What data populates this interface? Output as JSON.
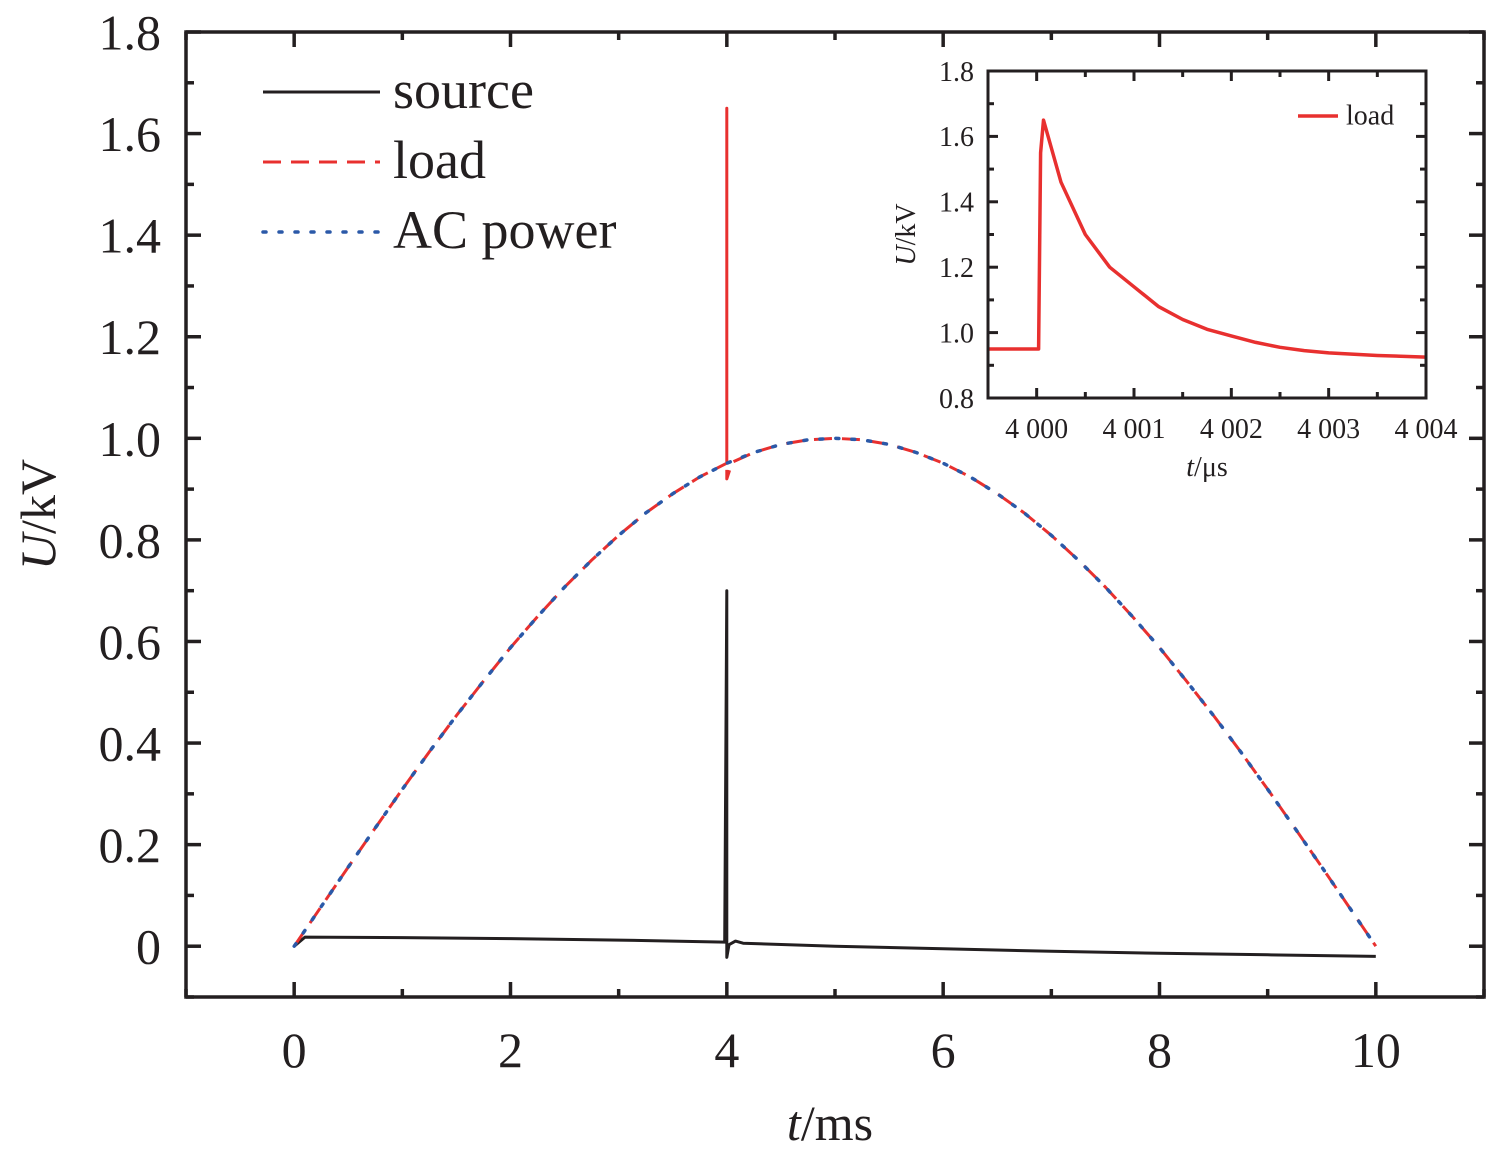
{
  "chart_data": [
    {
      "id": "main",
      "type": "line",
      "xlabel": {
        "var": "t",
        "unit": "/ms"
      },
      "ylabel": {
        "var": "U",
        "unit": "/kV"
      },
      "xlim": [
        -1,
        11
      ],
      "ylim": [
        -0.1,
        1.8
      ],
      "xticks": [
        0,
        2,
        4,
        6,
        8,
        10
      ],
      "xtick_labels": [
        "0",
        "2",
        "4",
        "6",
        "8",
        "10"
      ],
      "yticks": [
        0,
        0.2,
        0.4,
        0.6,
        0.8,
        1.0,
        1.2,
        1.4,
        1.6,
        1.8
      ],
      "ytick_labels": [
        "0",
        "0.2",
        "0.4",
        "0.6",
        "0.8",
        "1.0",
        "1.2",
        "1.4",
        "1.6",
        "1.8"
      ],
      "grid": false,
      "legend": "top-left",
      "series": [
        {
          "name": "source",
          "color": "#231f20",
          "style": "solid",
          "x": [
            0,
            0.1,
            1,
            2,
            3,
            3.98,
            4,
            4,
            4.02,
            4.08,
            4.15,
            5,
            6,
            7,
            8,
            9,
            10
          ],
          "y": [
            0,
            0.018,
            0.017,
            0.015,
            0.012,
            0.008,
            0.7,
            -0.022,
            0.003,
            0.01,
            0.006,
            0.0,
            -0.005,
            -0.01,
            -0.014,
            -0.017,
            -0.02
          ]
        },
        {
          "name": "load",
          "color": "#e8302f",
          "style": "dashed",
          "x": [
            0,
            0.25,
            0.5,
            0.75,
            1,
            1.25,
            1.5,
            1.75,
            2,
            2.25,
            2.5,
            2.75,
            3,
            3.25,
            3.5,
            3.75,
            4,
            4,
            4,
            4.05,
            4.25,
            4.5,
            4.75,
            5,
            5.25,
            5.5,
            5.75,
            6,
            6.25,
            6.5,
            6.75,
            7,
            7.25,
            7.5,
            7.75,
            8,
            8.25,
            8.5,
            8.75,
            9,
            9.25,
            9.5,
            9.75,
            10
          ],
          "y": [
            0,
            0.078,
            0.156,
            0.233,
            0.309,
            0.383,
            0.454,
            0.522,
            0.588,
            0.649,
            0.707,
            0.76,
            0.809,
            0.853,
            0.891,
            0.924,
            0.951,
            1.65,
            0.92,
            0.953,
            0.972,
            0.988,
            0.997,
            1.0,
            0.997,
            0.988,
            0.972,
            0.951,
            0.924,
            0.891,
            0.853,
            0.809,
            0.76,
            0.707,
            0.649,
            0.588,
            0.522,
            0.454,
            0.383,
            0.309,
            0.233,
            0.156,
            0.078,
            0.0
          ]
        },
        {
          "name": "AC power",
          "color": "#2b59a8",
          "style": "dotted",
          "x": [
            0,
            0.25,
            0.5,
            0.75,
            1,
            1.25,
            1.5,
            1.75,
            2,
            2.25,
            2.5,
            2.75,
            3,
            3.25,
            3.5,
            3.75,
            4,
            4.25,
            4.5,
            4.75,
            5,
            5.25,
            5.5,
            5.75,
            6,
            6.25,
            6.5,
            6.75,
            7,
            7.25,
            7.5,
            7.75,
            8,
            8.25,
            8.5,
            8.75,
            9,
            9.25,
            9.5,
            9.75,
            10
          ],
          "y": [
            0,
            0.078,
            0.156,
            0.233,
            0.309,
            0.383,
            0.454,
            0.522,
            0.588,
            0.649,
            0.707,
            0.76,
            0.809,
            0.853,
            0.891,
            0.924,
            0.951,
            0.972,
            0.988,
            0.997,
            1.0,
            0.997,
            0.988,
            0.972,
            0.951,
            0.924,
            0.891,
            0.853,
            0.809,
            0.76,
            0.707,
            0.649,
            0.588,
            0.522,
            0.454,
            0.383,
            0.309,
            0.233,
            0.156,
            0.078,
            0.0
          ]
        }
      ]
    },
    {
      "id": "inset",
      "type": "line",
      "xlabel": {
        "var": "t",
        "unit": "/μs"
      },
      "ylabel": {
        "var": "U",
        "unit": "/kV"
      },
      "xlim": [
        3999.5,
        4004
      ],
      "ylim": [
        0.8,
        1.8
      ],
      "xticks": [
        4000,
        4001,
        4002,
        4003,
        4004
      ],
      "xtick_labels": [
        "4 000",
        "4 001",
        "4 002",
        "4 003",
        "4 004"
      ],
      "yticks": [
        0.8,
        1.0,
        1.2,
        1.4,
        1.6,
        1.8
      ],
      "ytick_labels": [
        "0.8",
        "1.0",
        "1.2",
        "1.4",
        "1.6",
        "1.8"
      ],
      "grid": false,
      "legend": "top-right",
      "series": [
        {
          "name": "load",
          "color": "#e8302f",
          "style": "solid",
          "x": [
            3999.5,
            4000.02,
            4000.04,
            4000.07,
            4000.25,
            4000.5,
            4000.75,
            4001,
            4001.25,
            4001.5,
            4001.75,
            4002,
            4002.25,
            4002.5,
            4002.75,
            4003,
            4003.5,
            4004
          ],
          "y": [
            0.95,
            0.95,
            1.55,
            1.65,
            1.46,
            1.3,
            1.2,
            1.14,
            1.08,
            1.04,
            1.01,
            0.99,
            0.97,
            0.955,
            0.945,
            0.938,
            0.93,
            0.925
          ]
        }
      ]
    }
  ]
}
